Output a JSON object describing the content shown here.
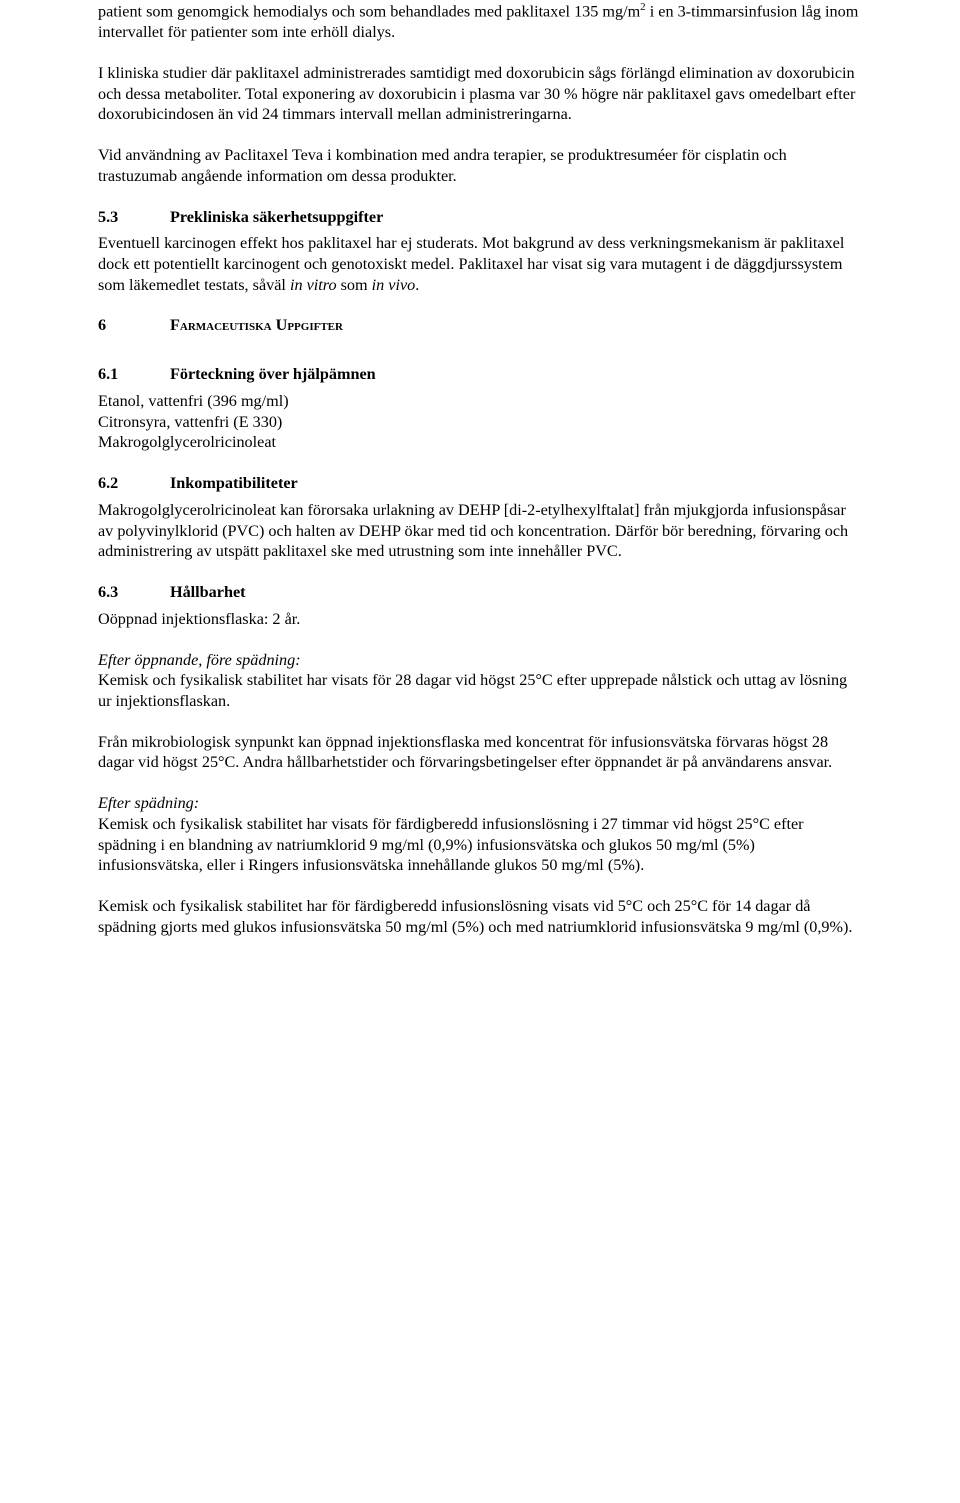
{
  "para1_html": "patient som genomgick hemodialys och som behandlades med paklitaxel 135 mg/m<sup style='font-size:11px'>2</sup> i en 3-timmarsinfusion låg inom intervallet för patienter som inte erhöll dialys.",
  "para2": "I kliniska studier där paklitaxel administrerades samtidigt med doxorubicin sågs förlängd elimination av doxorubicin och dessa metaboliter. Total exponering av doxorubicin i plasma var 30 % högre när paklitaxel gavs omedelbart efter doxorubicindosen än vid 24 timmars intervall mellan administreringarna.",
  "para3": "Vid användning av Paclitaxel Teva i kombination med andra terapier, se produktresuméer för cisplatin och trastuzumab angående information om dessa produkter.",
  "h53_num": "5.3",
  "h53_title": "Prekliniska säkerhetsuppgifter",
  "para53_html": "Eventuell karcinogen effekt hos paklitaxel har ej studerats. Mot bakgrund av dess verkningsmekanism är paklitaxel dock ett potentiellt karcinogent och genotoxiskt medel. Paklitaxel har visat sig vara mutagent i de däggdjurssystem som läkemedlet testats, såväl <span class='italic'>in vitro</span> som <span class='italic'>in vivo</span>.",
  "h6_num": "6",
  "h6_title_html": "F<span class='smallcaps'>armaceutiska</span> U<span class='smallcaps'>ppgifter</span>",
  "h61_num": "6.1",
  "h61_title": "Förteckning över hjälpämnen",
  "list61_1": "Etanol, vattenfri (396 mg/ml)",
  "list61_2": "Citronsyra, vattenfri (E 330)",
  "list61_3": "Makrogolglycerolricinoleat",
  "h62_num": "6.2",
  "h62_title": "Inkompatibiliteter",
  "para62": "Makrogolglycerolricinoleat kan förorsaka urlakning av DEHP [di-2-etylhexylftalat] från mjukgjorda infusionspåsar av polyvinylklorid (PVC) och halten av DEHP ökar med tid och koncentration. Därför bör beredning, förvaring och administrering av utspätt paklitaxel ske med utrustning som inte innehåller PVC.",
  "h63_num": "6.3",
  "h63_title": "Hållbarhet",
  "para63_1": "Oöppnad injektionsflaska: 2 år.",
  "para63_2_label": "Efter öppnande, före spädning:",
  "para63_2_body": "Kemisk och fysikalisk stabilitet har visats för 28 dagar vid högst 25°C efter upprepade nålstick och uttag av lösning ur injektionsflaskan.",
  "para63_3": "Från mikrobiologisk synpunkt kan öppnad injektionsflaska med koncentrat för infusionsvätska förvaras högst 28 dagar vid högst 25°C. Andra hållbarhetstider och förvaringsbetingelser efter öppnandet är på användarens ansvar.",
  "para63_4_label": "Efter spädning:",
  "para63_4_body": "Kemisk och fysikalisk stabilitet har visats för färdigberedd infusionslösning i 27 timmar vid högst 25°C efter spädning i en blandning av natriumklorid 9 mg/ml (0,9%) infusionsvätska och glukos 50 mg/ml (5%) infusionsvätska, eller i Ringers infusionsvätska innehållande glukos 50 mg/ml (5%).",
  "para63_5": "Kemisk och fysikalisk stabilitet har för färdigberedd infusionslösning visats vid 5°C och 25°C för 14 dagar då spädning gjorts med glukos infusionsvätska 50 mg/ml (5%) och med natriumklorid infusionsvätska 9 mg/ml (0,9%)."
}
